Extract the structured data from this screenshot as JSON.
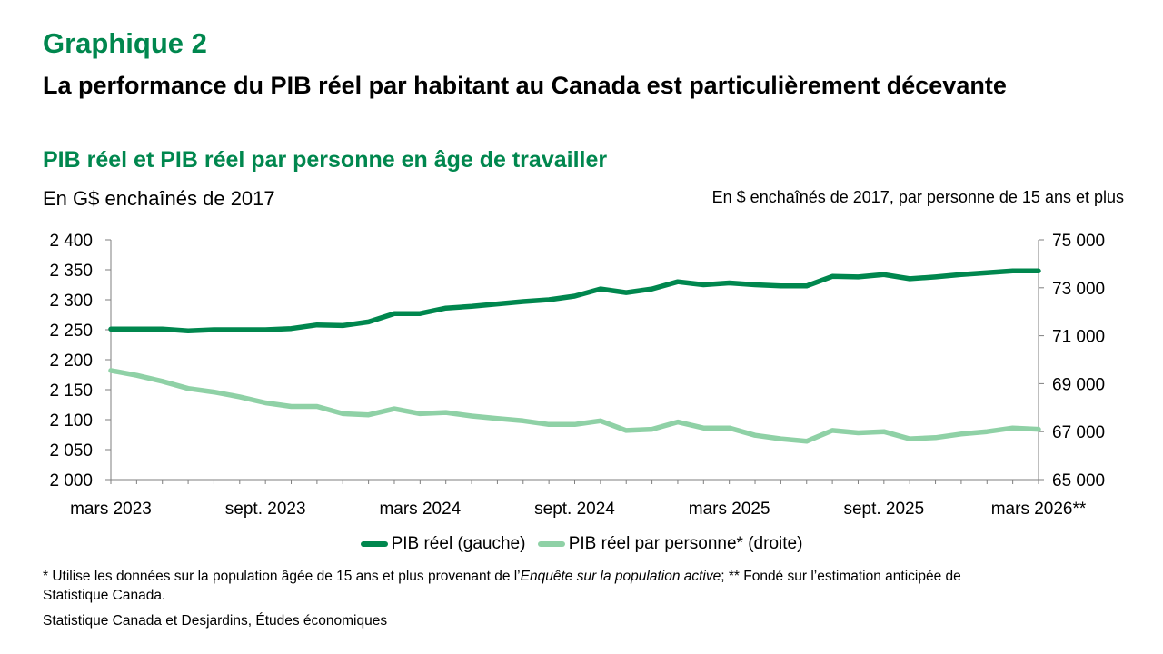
{
  "header": {
    "label": "Graphique 2",
    "heading": "La performance du PIB réel par habitant au Canada est particulièrement décevante",
    "subheading": "PIB réel et PIB réel par personne en âge de travailler"
  },
  "units": {
    "left": "En G$ enchaînés de 2017",
    "right": "En $ enchaînés de 2017, par personne de 15 ans et plus"
  },
  "chart_data": {
    "type": "line",
    "x": [
      "mars 2023",
      "avr. 2023",
      "mai 2023",
      "juin 2023",
      "juil. 2023",
      "août 2023",
      "sept. 2023",
      "oct. 2023",
      "nov. 2023",
      "déc. 2023",
      "janv. 2024",
      "févr. 2024",
      "mars 2024",
      "avr. 2024",
      "mai 2024",
      "juin 2024",
      "juil. 2024",
      "août 2024",
      "sept. 2024",
      "oct. 2024",
      "nov. 2024",
      "déc. 2024",
      "janv. 2025",
      "févr. 2025",
      "mars 2025",
      "avr. 2025",
      "mai 2025",
      "juin 2025",
      "juil. 2025",
      "août 2025",
      "sept. 2025",
      "oct. 2025",
      "nov. 2025",
      "déc. 2025",
      "janv. 2026",
      "févr. 2026",
      "mars 2026"
    ],
    "x_tick_labels": [
      "mars 2023",
      "sept. 2023",
      "mars 2024",
      "sept. 2024",
      "mars 2025",
      "sept. 2025",
      "mars 2026**"
    ],
    "x_tick_indices": [
      0,
      6,
      12,
      18,
      24,
      30,
      36
    ],
    "y_left": {
      "min": 2000,
      "max": 2400,
      "step": 50,
      "ticks": [
        "2 000",
        "2 050",
        "2 100",
        "2 150",
        "2 200",
        "2 250",
        "2 300",
        "2 350",
        "2 400"
      ]
    },
    "y_right": {
      "min": 65000,
      "max": 75000,
      "step": 2000,
      "ticks": [
        "65 000",
        "67 000",
        "69 000",
        "71 000",
        "73 000",
        "75 000"
      ]
    },
    "grid": false,
    "legend_position": "bottom",
    "series": [
      {
        "name": "PIB réel (gauche)",
        "axis": "left",
        "color": "#00874e",
        "values": [
          2251,
          2251,
          2251,
          2248,
          2250,
          2250,
          2250,
          2252,
          2258,
          2257,
          2263,
          2277,
          2277,
          2286,
          2289,
          2293,
          2297,
          2300,
          2306,
          2318,
          2312,
          2318,
          2330,
          2325,
          2328,
          2325,
          2323,
          2323,
          2339,
          2338,
          2342,
          2335,
          2338,
          2342,
          2345,
          2348,
          2348
        ]
      },
      {
        "name": "PIB réel par personne* (droite)",
        "axis": "right",
        "color": "#8fd1a6",
        "values": [
          69550,
          69350,
          69100,
          68800,
          68650,
          68450,
          68200,
          68050,
          68050,
          67750,
          67700,
          67950,
          67750,
          67800,
          67650,
          67550,
          67450,
          67300,
          67300,
          67450,
          67050,
          67100,
          67400,
          67150,
          67150,
          66850,
          66700,
          66600,
          67050,
          66950,
          67000,
          66700,
          66750,
          66900,
          67000,
          67150,
          67100
        ]
      }
    ]
  },
  "legend": [
    {
      "label": "PIB réel (gauche)",
      "color": "#00874e"
    },
    {
      "label": "PIB réel par personne* (droite)",
      "color": "#8fd1a6"
    }
  ],
  "footnote": {
    "part1": "* Utilise les données sur la population âgée de 15 ans et plus provenant de l’",
    "italic": "Enquête sur la population active",
    "part2": "; ** Fondé sur l’estimation anticipée de Statistique Canada."
  },
  "source": "Statistique Canada et Desjardins, Études économiques"
}
